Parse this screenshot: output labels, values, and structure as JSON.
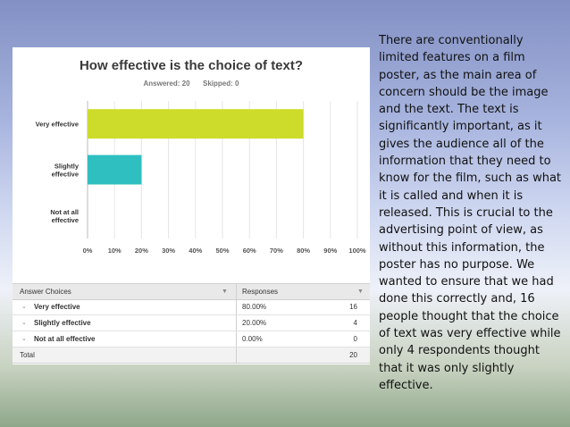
{
  "survey": {
    "title": "How effective is the choice of text?",
    "answered_label": "Answered: 20",
    "skipped_label": "Skipped: 0"
  },
  "chart_data": {
    "type": "bar",
    "orientation": "horizontal",
    "title": "How effective is the choice of text?",
    "categories": [
      "Very effective",
      "Slightly effective",
      "Not at all effective"
    ],
    "category_lines": [
      [
        "Very effective"
      ],
      [
        "Slightly",
        "effective"
      ],
      [
        "Not at all",
        "effective"
      ]
    ],
    "values": [
      80,
      20,
      0
    ],
    "value_unit": "%",
    "xlim": [
      0,
      100
    ],
    "ticks": [
      "0%",
      "10%",
      "20%",
      "30%",
      "40%",
      "50%",
      "60%",
      "70%",
      "80%",
      "90%",
      "100%"
    ],
    "colors": [
      "#cddc2a",
      "#2fbfc0",
      "#999999"
    ],
    "grid": true,
    "xlabel": "",
    "ylabel": ""
  },
  "table": {
    "headers": [
      "Answer Choices",
      "Responses",
      ""
    ],
    "rows": [
      {
        "choice": "Very effective",
        "percent": "80.00%",
        "count": "16"
      },
      {
        "choice": "Slightly effective",
        "percent": "20.00%",
        "count": "4"
      },
      {
        "choice": "Not at all effective",
        "percent": "0.00%",
        "count": "0"
      }
    ],
    "total_label": "Total",
    "total_count": "20"
  },
  "commentary": "There are conventionally limited features on a film poster, as the main area of concern should be the image and the text. The text is significantly important, as it gives the audience all of the information that they need to know for the film, such as what it is called and when it is released. This is crucial to the advertising point of view, as without this information, the poster has no purpose. We wanted to ensure that we had done this correctly and, 16 people thought that the choice of text was very effective while only 4 respondents thought that it was only slightly effective."
}
